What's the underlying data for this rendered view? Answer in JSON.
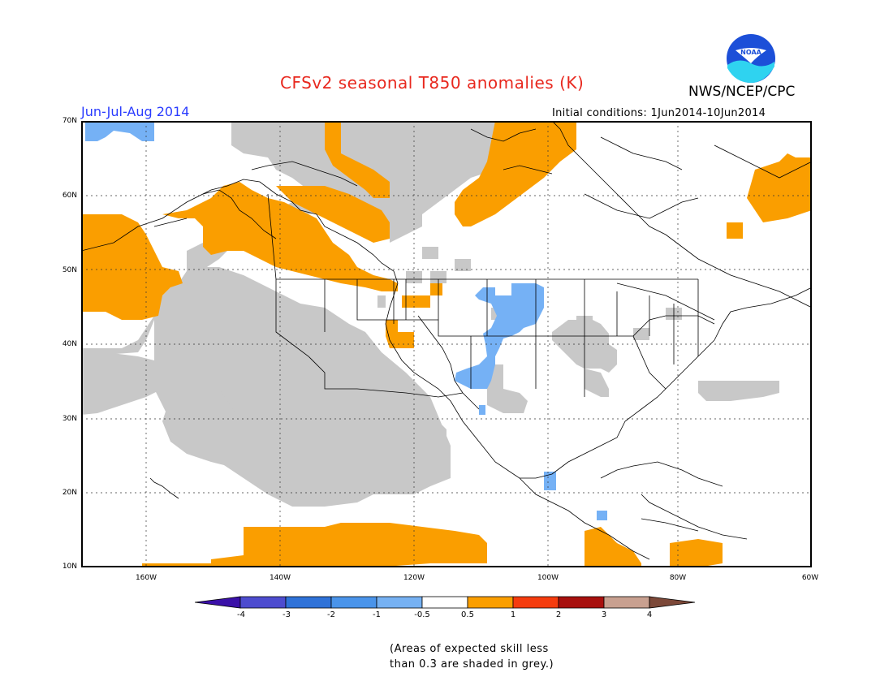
{
  "header": {
    "title": "CFSv2 seasonal T850 anomalies (K)",
    "agency": "NWS/NCEP/CPC",
    "logo_text": "NOAA",
    "season": "Jun-Jul-Aug 2014",
    "initial_conditions": "Initial conditions: 1Jun2014-10Jun2014"
  },
  "map": {
    "lat_labels": [
      "70N",
      "60N",
      "50N",
      "40N",
      "30N",
      "20N",
      "10N"
    ],
    "lon_labels": [
      "160W",
      "140W",
      "120W",
      "100W",
      "80W",
      "60W"
    ],
    "colors": {
      "positive": "#fa9e00",
      "negative": "#75b1f5",
      "low_skill": "#c8c8c8",
      "coast": "#000000"
    }
  },
  "colorbar": {
    "labels": [
      "-4",
      "-3",
      "-2",
      "-1",
      "-0.5",
      "0.5",
      "1",
      "2",
      "3",
      "4"
    ],
    "colors": [
      "#3a10a8",
      "#4d4ccf",
      "#2f72d8",
      "#4a94ea",
      "#76b1f2",
      "#ffffff",
      "#fa9e00",
      "#f53c0e",
      "#a8100e",
      "#c8a090",
      "#7c4838"
    ]
  },
  "footnote": {
    "line1": "(Areas of expected skill less",
    "line2": "than 0.3 are shaded in grey.)"
  }
}
